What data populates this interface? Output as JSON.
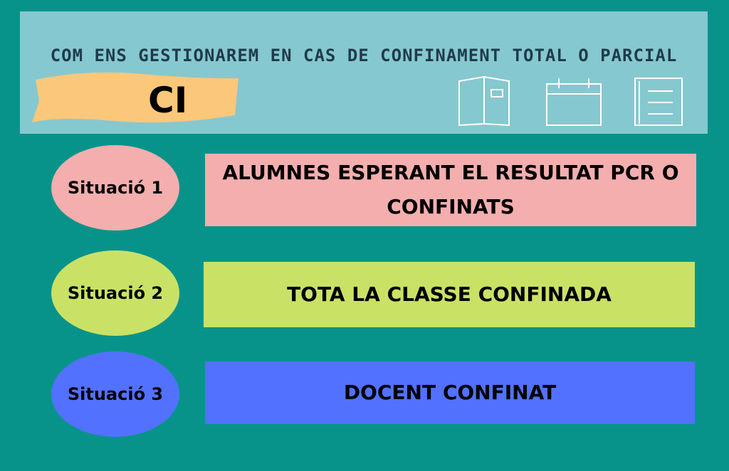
{
  "header": {
    "title": "COM ENS GESTIONAREM EN CAS DE CONFINAMENT TOTAL O PARCIAL",
    "badge": "CI"
  },
  "situations": [
    {
      "label": "Situació 1",
      "text": "ALUMNES ESPERANT EL RESULTAT PCR O CONFINATS"
    },
    {
      "label": "Situació 2",
      "text": "TOTA LA CLASSE CONFINADA"
    },
    {
      "label": "Situació 3",
      "text": "DOCENT CONFINAT"
    }
  ]
}
